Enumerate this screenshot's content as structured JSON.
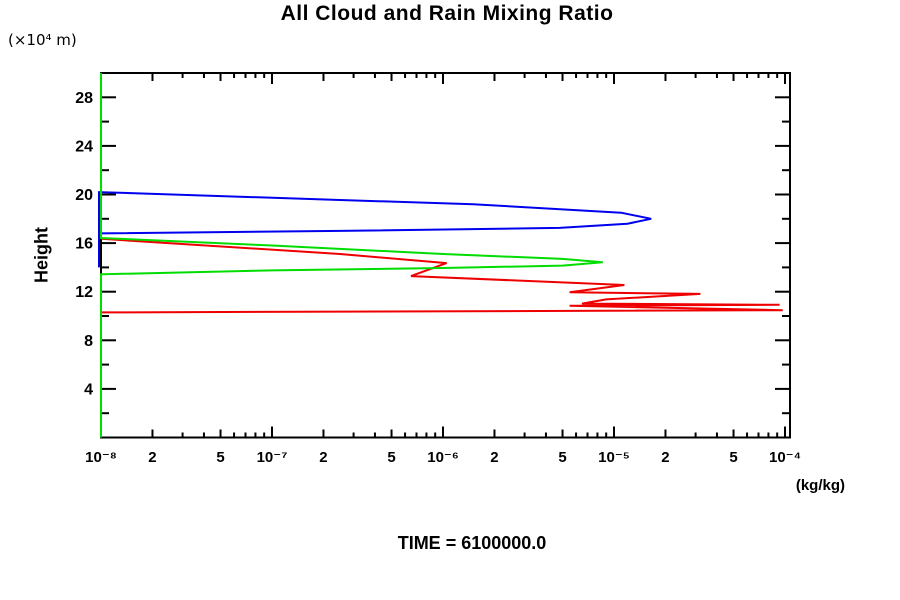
{
  "chart_data": {
    "type": "line",
    "title": "All Cloud and Rain Mixing Ratio",
    "time_label": "TIME = 6100000.0",
    "x_axis": {
      "scale": "log",
      "min_exp": -8,
      "max_exp": -4,
      "decade_labels": [
        "10⁻⁸",
        "10⁻⁷",
        "10⁻⁶",
        "10⁻⁵",
        "10⁻⁴"
      ],
      "sub_tick_labels": [
        "2",
        "5"
      ],
      "unit_label": "(kg/kg)"
    },
    "y_axis": {
      "label": "Height",
      "unit_label": "(×10⁴ m)",
      "min": 0,
      "max": 30,
      "major_ticks": [
        4,
        8,
        12,
        16,
        20,
        24,
        28
      ],
      "minor_step": 2
    },
    "grid": false,
    "legend": false,
    "series": [
      {
        "name": "blue-curve",
        "color": "#0000ee",
        "points": [
          [
            1e-08,
            14.0
          ],
          [
            1e-08,
            20.2
          ],
          [
            2.5e-07,
            19.55
          ],
          [
            1.5e-06,
            19.2
          ],
          [
            1.1e-05,
            18.5
          ],
          [
            1.65e-05,
            18.0
          ],
          [
            1.2e-05,
            17.6
          ],
          [
            4.8e-06,
            17.25
          ],
          [
            2.5e-07,
            17.0
          ],
          [
            1e-08,
            16.8
          ]
        ]
      },
      {
        "name": "red-curve",
        "color": "#ee0000",
        "points": [
          [
            1e-08,
            10.3
          ],
          [
            9.7e-05,
            10.48
          ],
          [
            5.5e-06,
            10.85
          ],
          [
            9.3e-05,
            10.92
          ],
          [
            6.5e-06,
            11.02
          ],
          [
            9e-06,
            11.37
          ],
          [
            3.2e-05,
            11.82
          ],
          [
            5.5e-06,
            11.95
          ],
          [
            1.15e-05,
            12.55
          ],
          [
            6.5e-07,
            13.28
          ],
          [
            1.05e-06,
            14.35
          ],
          [
            2.5e-07,
            15.1
          ],
          [
            1e-08,
            16.35
          ]
        ]
      },
      {
        "name": "green-curve",
        "color": "#00dd00",
        "points": [
          [
            1e-08,
            0
          ],
          [
            1e-08,
            13.43
          ],
          [
            1e-07,
            13.75
          ],
          [
            1e-06,
            13.95
          ],
          [
            5e-06,
            14.15
          ],
          [
            8.6e-06,
            14.42
          ],
          [
            5e-06,
            14.7
          ],
          [
            1e-06,
            15.1
          ],
          [
            1e-07,
            15.8
          ],
          [
            1e-08,
            16.42
          ],
          [
            1e-08,
            30
          ]
        ]
      }
    ]
  }
}
